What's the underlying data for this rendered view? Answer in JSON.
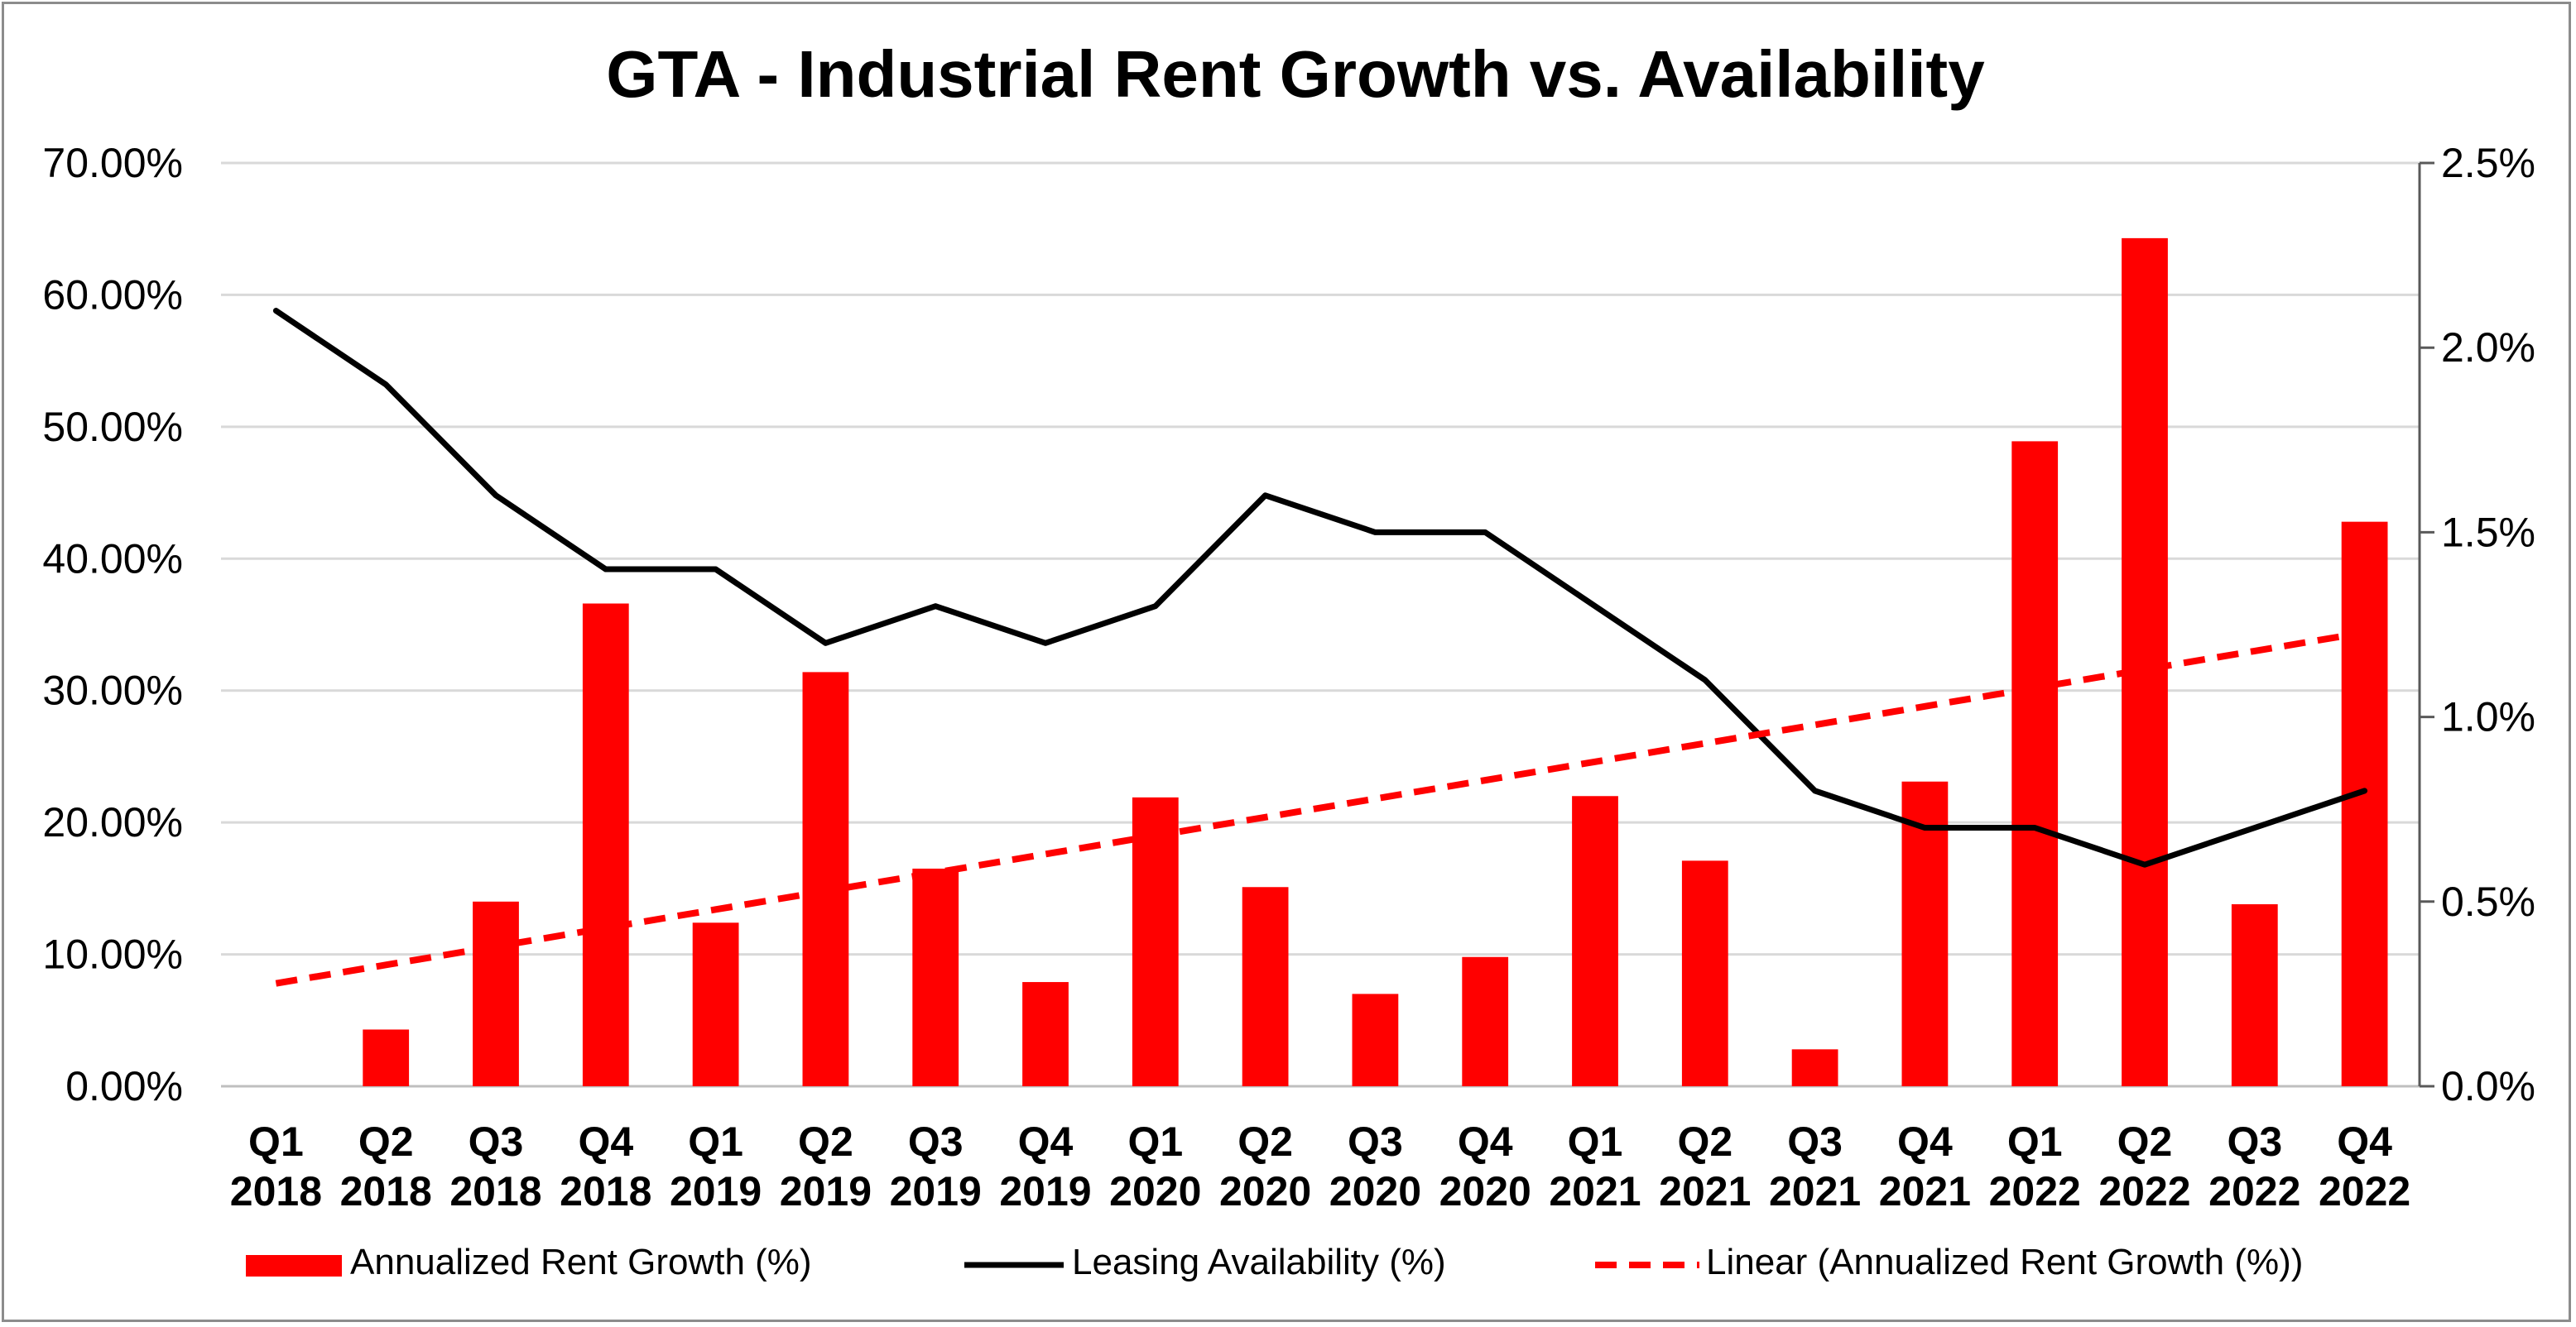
{
  "chart_data": {
    "type": "bar",
    "title": "GTA - Industrial Rent Growth vs. Availability",
    "categories": [
      {
        "quarter": "Q1",
        "year": "2018"
      },
      {
        "quarter": "Q2",
        "year": "2018"
      },
      {
        "quarter": "Q3",
        "year": "2018"
      },
      {
        "quarter": "Q4",
        "year": "2018"
      },
      {
        "quarter": "Q1",
        "year": "2019"
      },
      {
        "quarter": "Q2",
        "year": "2019"
      },
      {
        "quarter": "Q3",
        "year": "2019"
      },
      {
        "quarter": "Q4",
        "year": "2019"
      },
      {
        "quarter": "Q1",
        "year": "2020"
      },
      {
        "quarter": "Q2",
        "year": "2020"
      },
      {
        "quarter": "Q3",
        "year": "2020"
      },
      {
        "quarter": "Q4",
        "year": "2020"
      },
      {
        "quarter": "Q1",
        "year": "2021"
      },
      {
        "quarter": "Q2",
        "year": "2021"
      },
      {
        "quarter": "Q3",
        "year": "2021"
      },
      {
        "quarter": "Q4",
        "year": "2021"
      },
      {
        "quarter": "Q1",
        "year": "2022"
      },
      {
        "quarter": "Q2",
        "year": "2022"
      },
      {
        "quarter": "Q3",
        "year": "2022"
      },
      {
        "quarter": "Q4",
        "year": "2022"
      }
    ],
    "series": [
      {
        "name": "Annualized Rent Growth (%)",
        "kind": "bar",
        "axis": "left",
        "color": "#ff0000",
        "values": [
          0.0,
          4.3,
          14.0,
          36.6,
          12.4,
          31.4,
          16.5,
          7.9,
          21.9,
          15.1,
          7.0,
          9.8,
          22.0,
          17.1,
          2.8,
          23.1,
          48.9,
          64.3,
          13.8,
          42.8
        ]
      },
      {
        "name": "Leasing Availability (%)",
        "kind": "line",
        "axis": "right",
        "color": "#000000",
        "values": [
          2.1,
          1.9,
          1.6,
          1.4,
          1.4,
          1.2,
          1.3,
          1.2,
          1.3,
          1.6,
          1.5,
          1.5,
          1.3,
          1.1,
          0.8,
          0.7,
          0.7,
          0.6,
          0.7,
          0.8
        ]
      },
      {
        "name": "Linear (Annualized Rent Growth (%))",
        "kind": "trendline",
        "axis": "left",
        "color": "#ff0000",
        "values": [
          7.8,
          9.2,
          10.6,
          12.0,
          13.4,
          14.8,
          16.2,
          17.6,
          19.0,
          20.4,
          21.8,
          23.2,
          24.6,
          26.0,
          27.4,
          28.8,
          30.2,
          31.6,
          33.0,
          34.4
        ]
      }
    ],
    "y_left": {
      "min": 0,
      "max": 70,
      "step": 10,
      "tick_labels": [
        "0.00%",
        "10.00%",
        "20.00%",
        "30.00%",
        "40.00%",
        "50.00%",
        "60.00%",
        "70.00%"
      ]
    },
    "y_right": {
      "min": 0,
      "max": 2.5,
      "step": 0.5,
      "tick_labels": [
        "0.0%",
        "0.5%",
        "1.0%",
        "1.5%",
        "2.0%",
        "2.5%"
      ]
    },
    "grid": true,
    "legend_position": "bottom"
  }
}
